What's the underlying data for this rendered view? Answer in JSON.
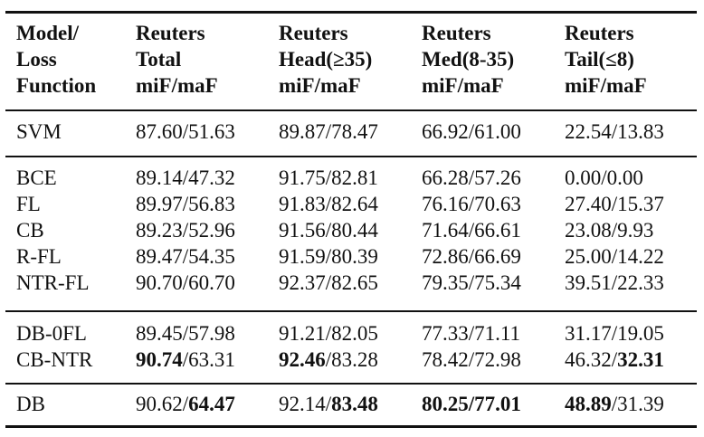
{
  "header": [
    [
      "Model/",
      "Loss",
      "Function"
    ],
    [
      "Reuters",
      "Total",
      "miF/maF"
    ],
    [
      "Reuters",
      "Head(≥35)",
      "miF/maF"
    ],
    [
      "Reuters",
      "Med(8-35)",
      "miF/maF"
    ],
    [
      "Reuters",
      "Tail(≤8)",
      "miF/maF"
    ]
  ],
  "rows": [
    {
      "model": "SVM",
      "cells": [
        [
          "87.60/51.63",
          ""
        ],
        [
          "89.87/78.47",
          ""
        ],
        [
          "66.92/61.00",
          ""
        ],
        [
          "22.54/13.83",
          ""
        ]
      ]
    },
    {
      "model": "BCE",
      "cells": [
        [
          "89.14/47.32",
          ""
        ],
        [
          "91.75/82.81",
          ""
        ],
        [
          "66.28/57.26",
          ""
        ],
        [
          "0.00/0.00",
          ""
        ]
      ]
    },
    {
      "model": "FL",
      "cells": [
        [
          "89.97/56.83",
          ""
        ],
        [
          "91.83/82.64",
          ""
        ],
        [
          "76.16/70.63",
          ""
        ],
        [
          "27.40/15.37",
          ""
        ]
      ]
    },
    {
      "model": "CB",
      "cells": [
        [
          "89.23/52.96",
          ""
        ],
        [
          "91.56/80.44",
          ""
        ],
        [
          "71.64/66.61",
          ""
        ],
        [
          "23.08/9.93",
          ""
        ]
      ]
    },
    {
      "model": "R-FL",
      "cells": [
        [
          "89.47/54.35",
          ""
        ],
        [
          "91.59/80.39",
          ""
        ],
        [
          "72.86/66.69",
          ""
        ],
        [
          "25.00/14.22",
          ""
        ]
      ]
    },
    {
      "model": "NTR-FL",
      "cells": [
        [
          "90.70/60.70",
          ""
        ],
        [
          "92.37/82.65",
          ""
        ],
        [
          "79.35/75.34",
          ""
        ],
        [
          "39.51/22.33",
          ""
        ]
      ]
    },
    {
      "model": "DB-0FL",
      "cells": [
        [
          "89.45/57.98",
          ""
        ],
        [
          "91.21/82.05",
          ""
        ],
        [
          "77.33/71.11",
          ""
        ],
        [
          "31.17/19.05",
          ""
        ]
      ]
    },
    {
      "model": "CB-NTR",
      "cells": [
        [
          "90.74",
          "/63.31",
          "b"
        ],
        [
          "92.46",
          "/83.28",
          "b"
        ],
        [
          "78.42/72.98",
          ""
        ],
        [
          "46.32/",
          "32.31",
          "b2"
        ]
      ]
    },
    {
      "model": "DB",
      "cells": [
        [
          "90.62/",
          "64.47",
          "b2"
        ],
        [
          "92.14/",
          "83.48",
          "b2"
        ],
        [
          "80.25/77.01",
          "",
          "ball"
        ],
        [
          "48.89",
          "/31.39",
          "b"
        ]
      ]
    }
  ]
}
